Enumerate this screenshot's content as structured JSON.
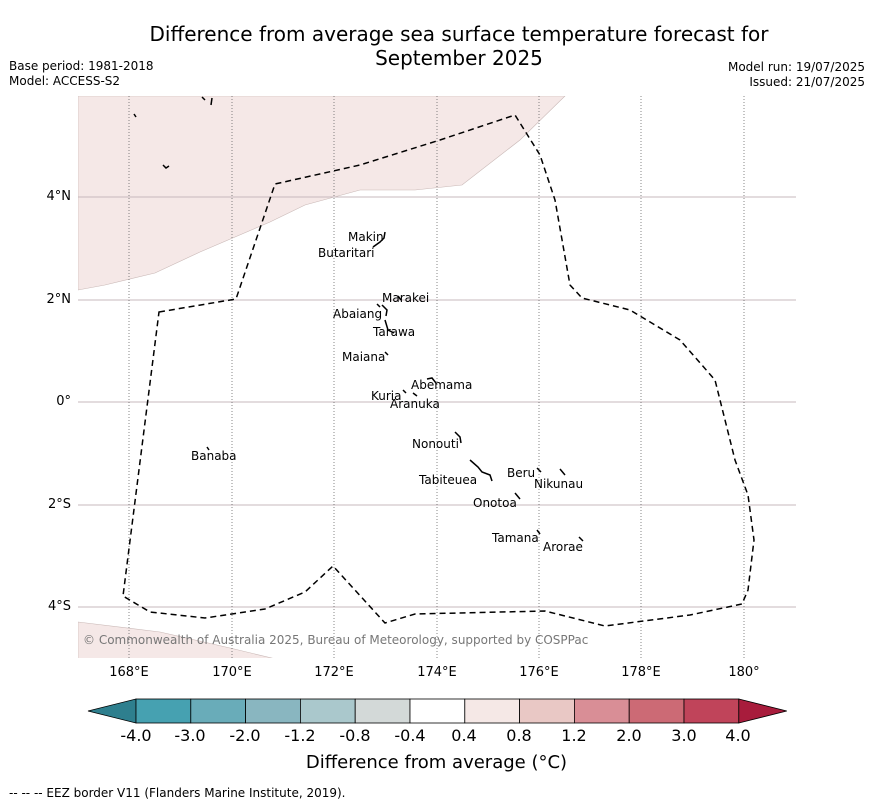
{
  "title_line1": "Difference from average sea surface temperature forecast for",
  "title_line2": "September 2025",
  "meta_left": {
    "base_period": "Base period: 1981-2018",
    "model": "Model: ACCESS-S2"
  },
  "meta_right": {
    "model_run": "Model run: 19/07/2025",
    "issued": "Issued: 21/07/2025"
  },
  "map": {
    "lat_labels": [
      "4°N",
      "2°N",
      "0°",
      "2°S",
      "4°S"
    ],
    "lon_labels": [
      "168°E",
      "170°E",
      "172°E",
      "174°E",
      "176°E",
      "178°E",
      "180°"
    ],
    "islands": [
      "Makin",
      "Butaritari",
      "Marakei",
      "Abaiang",
      "Tarawa",
      "Maiana",
      "Abemama",
      "Kuria",
      "Aranuka",
      "Banaba",
      "Nonouti",
      "Tabiteuea",
      "Beru",
      "Nikunau",
      "Onotoa",
      "Tamana",
      "Arorae"
    ],
    "copyright": "© Commonwealth of Australia 2025, Bureau of Meteorology, supported by COSPPac",
    "land_color": "#f5e8e7",
    "eez_line_style": "dashed"
  },
  "colorbar": {
    "labels": [
      "-4.0",
      "-3.0",
      "-2.0",
      "-1.2",
      "-0.8",
      "-0.4",
      "0.4",
      "0.8",
      "1.2",
      "2.0",
      "3.0",
      "4.0"
    ],
    "colors": [
      "#2e7f8e",
      "#46a1b1",
      "#69acb9",
      "#89b6c0",
      "#aac8cc",
      "#d3d9d8",
      "#ffffff",
      "#f5e8e6",
      "#e9c8c5",
      "#d98e96",
      "#cc6a75",
      "#c0445a",
      "#a81c3c"
    ],
    "title": "Difference from average (°C)"
  },
  "footnote": "--  --  -- EEZ border V11 (Flanders Marine Institute, 2019)."
}
